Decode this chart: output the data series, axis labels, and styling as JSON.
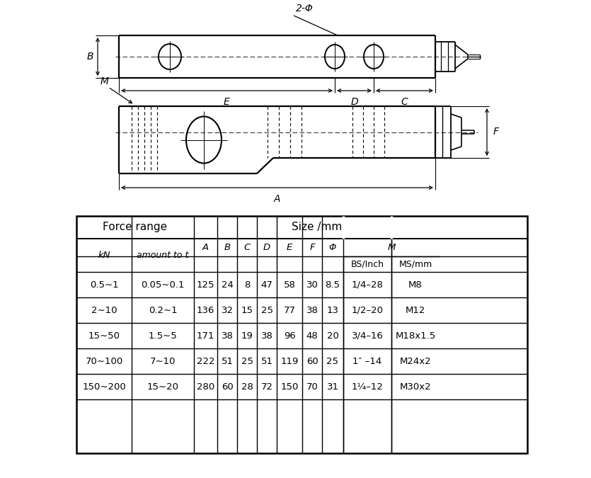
{
  "bg_color": "#ffffff",
  "line_color": "#000000",
  "table_data": [
    [
      "0.5∼1",
      "0.05∼0.1",
      "125",
      "24",
      "8",
      "47",
      "58",
      "30",
      "8.5",
      "1/4–28",
      "M8"
    ],
    [
      "2∼10",
      "0.2∼1",
      "136",
      "32",
      "15",
      "25",
      "77",
      "38",
      "13",
      "1/2–20",
      "M12"
    ],
    [
      "15∼50",
      "1.5∼5",
      "171",
      "38",
      "19",
      "38",
      "96",
      "48",
      "20",
      "3/4–16",
      "M18x1.5"
    ],
    [
      "70∼100",
      "7∼10",
      "222",
      "51",
      "25",
      "51",
      "119",
      "60",
      "25",
      "1″ –14",
      "M24x2"
    ],
    [
      "150∼200",
      "15∼20",
      "280",
      "60",
      "28",
      "72",
      "150",
      "70",
      "31",
      "1¼–12",
      "M30x2"
    ]
  ]
}
